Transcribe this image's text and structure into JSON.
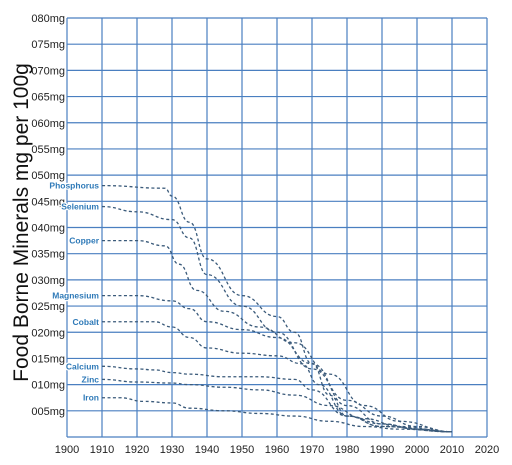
{
  "chart_data": {
    "type": "line",
    "title": "",
    "xlabel": "",
    "ylabel": "Food Borne Minerals mg per 100g",
    "xlim": [
      1900,
      2020
    ],
    "ylim": [
      0,
      80
    ],
    "x_ticks": [
      "1900",
      "1910",
      "1920",
      "1930",
      "1940",
      "1950",
      "1960",
      "1970",
      "1980",
      "1990",
      "2000",
      "2010",
      "2020"
    ],
    "y_ticks": [
      "005mg",
      "010mg",
      "015mg",
      "020mg",
      "025mg",
      "030mg",
      "035mg",
      "040mg",
      "045mg",
      "050mg",
      "055mg",
      "060mg",
      "065mg",
      "070mg",
      "075mg",
      "080mg"
    ],
    "y_tick_values": [
      5,
      10,
      15,
      20,
      25,
      30,
      35,
      40,
      45,
      50,
      55,
      60,
      65,
      70,
      75,
      80
    ],
    "grid": true,
    "line_style": "dashed",
    "line_color": "#3a5a7a",
    "label_color": "#2f7ab8",
    "grid_color": "#4a7fc0",
    "series": [
      {
        "name": "Phosphorus",
        "points": [
          [
            1910,
            48
          ],
          [
            1928,
            47.5
          ],
          [
            1930,
            46
          ],
          [
            1935,
            41
          ],
          [
            1940,
            34
          ],
          [
            1950,
            27
          ],
          [
            1960,
            23
          ],
          [
            1965,
            20
          ],
          [
            1970,
            14
          ],
          [
            1975,
            8
          ],
          [
            1980,
            4
          ],
          [
            1990,
            2.5
          ],
          [
            2000,
            1.5
          ],
          [
            2010,
            1
          ]
        ]
      },
      {
        "name": "Selenium",
        "points": [
          [
            1910,
            44
          ],
          [
            1920,
            43
          ],
          [
            1930,
            41.5
          ],
          [
            1935,
            38
          ],
          [
            1940,
            31
          ],
          [
            1950,
            25
          ],
          [
            1960,
            20
          ],
          [
            1970,
            13
          ],
          [
            1980,
            7
          ],
          [
            1990,
            4
          ],
          [
            2000,
            2
          ],
          [
            2010,
            1
          ]
        ]
      },
      {
        "name": "Copper",
        "points": [
          [
            1910,
            37.5
          ],
          [
            1920,
            37.5
          ],
          [
            1928,
            36.5
          ],
          [
            1932,
            33
          ],
          [
            1937,
            28
          ],
          [
            1945,
            24
          ],
          [
            1955,
            21
          ],
          [
            1965,
            18
          ],
          [
            1975,
            12
          ],
          [
            1985,
            6
          ],
          [
            1995,
            3
          ],
          [
            2010,
            1
          ]
        ]
      },
      {
        "name": "Magnesium",
        "points": [
          [
            1910,
            27
          ],
          [
            1920,
            27
          ],
          [
            1930,
            26
          ],
          [
            1935,
            24.5
          ],
          [
            1940,
            22
          ],
          [
            1950,
            20.5
          ],
          [
            1960,
            19
          ],
          [
            1970,
            14
          ],
          [
            1980,
            6
          ],
          [
            1990,
            2.5
          ],
          [
            2000,
            1.5
          ],
          [
            2010,
            1
          ]
        ]
      },
      {
        "name": "Cobalt",
        "points": [
          [
            1910,
            22
          ],
          [
            1925,
            22
          ],
          [
            1930,
            21
          ],
          [
            1935,
            19
          ],
          [
            1940,
            17
          ],
          [
            1950,
            16
          ],
          [
            1960,
            15.5
          ],
          [
            1967,
            14
          ],
          [
            1972,
            10
          ],
          [
            1980,
            4
          ],
          [
            1990,
            2
          ],
          [
            2010,
            1
          ]
        ]
      },
      {
        "name": "Calcium",
        "points": [
          [
            1910,
            13.5
          ],
          [
            1920,
            13
          ],
          [
            1925,
            12.8
          ],
          [
            1930,
            12.3
          ],
          [
            1935,
            12
          ],
          [
            1945,
            11.5
          ],
          [
            1955,
            11.5
          ],
          [
            1965,
            11
          ],
          [
            1970,
            9
          ],
          [
            1980,
            4
          ],
          [
            1990,
            2
          ],
          [
            2010,
            1
          ]
        ]
      },
      {
        "name": "Zinc",
        "points": [
          [
            1910,
            11
          ],
          [
            1920,
            10.5
          ],
          [
            1930,
            10.3
          ],
          [
            1935,
            10
          ],
          [
            1945,
            9.5
          ],
          [
            1955,
            9
          ],
          [
            1965,
            8
          ],
          [
            1975,
            6
          ],
          [
            1985,
            3.5
          ],
          [
            1995,
            2
          ],
          [
            2010,
            1
          ]
        ]
      },
      {
        "name": "Iron",
        "points": [
          [
            1910,
            7.5
          ],
          [
            1915,
            7.5
          ],
          [
            1922,
            6.8
          ],
          [
            1930,
            6.5
          ],
          [
            1935,
            5.5
          ],
          [
            1945,
            5
          ],
          [
            1955,
            4.5
          ],
          [
            1965,
            4
          ],
          [
            1975,
            3
          ],
          [
            1985,
            2
          ],
          [
            1995,
            1.5
          ],
          [
            2010,
            1
          ]
        ]
      }
    ]
  }
}
